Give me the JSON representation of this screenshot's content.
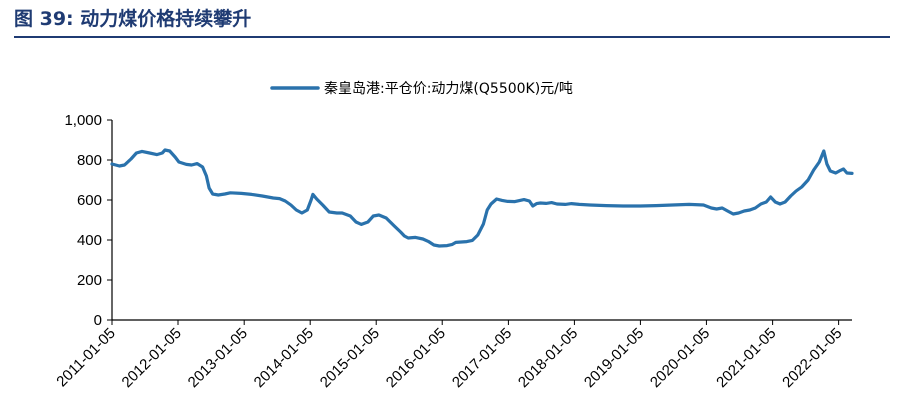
{
  "figure": {
    "title": "图 39: 动力煤价格持续攀升"
  },
  "colors": {
    "title": "#1f3b73",
    "series": "#2a72ac"
  },
  "chart_data": {
    "type": "line",
    "title": "",
    "xlabel": "",
    "ylabel": "",
    "legend": "top-center",
    "grid": false,
    "ylim": [
      0,
      1000
    ],
    "y_ticks": [
      "0",
      "200",
      "400",
      "600",
      "800",
      "1,000"
    ],
    "x_ticks": [
      "2011-01-05",
      "2012-01-05",
      "2013-01-05",
      "2014-01-05",
      "2015-01-05",
      "2016-01-05",
      "2017-01-05",
      "2018-01-05",
      "2019-01-05",
      "2020-01-05",
      "2021-01-05",
      "2022-01-05"
    ],
    "xlim": [
      "2011-01-05",
      "2022-03-20"
    ],
    "series": [
      {
        "name": "秦皇岛港:平仓价:动力煤(Q5500K)元/吨",
        "color": "#2a72ac",
        "points": [
          [
            "2011-01-05",
            780
          ],
          [
            "2011-02-15",
            770
          ],
          [
            "2011-03-15",
            775
          ],
          [
            "2011-04-20",
            805
          ],
          [
            "2011-05-20",
            835
          ],
          [
            "2011-06-20",
            843
          ],
          [
            "2011-08-01",
            835
          ],
          [
            "2011-09-10",
            827
          ],
          [
            "2011-10-10",
            835
          ],
          [
            "2011-10-25",
            850
          ],
          [
            "2011-11-20",
            845
          ],
          [
            "2011-12-20",
            815
          ],
          [
            "2012-01-10",
            790
          ],
          [
            "2012-02-20",
            778
          ],
          [
            "2012-03-20",
            775
          ],
          [
            "2012-04-20",
            782
          ],
          [
            "2012-05-20",
            765
          ],
          [
            "2012-06-10",
            720
          ],
          [
            "2012-06-25",
            660
          ],
          [
            "2012-07-15",
            630
          ],
          [
            "2012-08-15",
            625
          ],
          [
            "2012-09-20",
            630
          ],
          [
            "2012-10-20",
            636
          ],
          [
            "2012-12-20",
            633
          ],
          [
            "2013-02-15",
            628
          ],
          [
            "2013-04-15",
            620
          ],
          [
            "2013-06-15",
            610
          ],
          [
            "2013-07-20",
            607
          ],
          [
            "2013-08-20",
            595
          ],
          [
            "2013-09-20",
            575
          ],
          [
            "2013-10-20",
            550
          ],
          [
            "2013-11-20",
            535
          ],
          [
            "2013-12-20",
            550
          ],
          [
            "2014-01-10",
            600
          ],
          [
            "2014-01-20",
            628
          ],
          [
            "2014-02-10",
            605
          ],
          [
            "2014-03-15",
            575
          ],
          [
            "2014-04-20",
            540
          ],
          [
            "2014-06-01",
            535
          ],
          [
            "2014-07-01",
            535
          ],
          [
            "2014-08-15",
            520
          ],
          [
            "2014-09-15",
            490
          ],
          [
            "2014-10-15",
            478
          ],
          [
            "2014-11-20",
            490
          ],
          [
            "2014-12-20",
            520
          ],
          [
            "2015-01-20",
            525
          ],
          [
            "2015-03-01",
            510
          ],
          [
            "2015-04-15",
            470
          ],
          [
            "2015-05-20",
            440
          ],
          [
            "2015-06-10",
            420
          ],
          [
            "2015-07-01",
            410
          ],
          [
            "2015-08-10",
            413
          ],
          [
            "2015-09-20",
            405
          ],
          [
            "2015-10-20",
            393
          ],
          [
            "2015-11-20",
            375
          ],
          [
            "2015-12-20",
            370
          ],
          [
            "2016-02-01",
            372
          ],
          [
            "2016-03-01",
            378
          ],
          [
            "2016-03-20",
            388
          ],
          [
            "2016-04-20",
            390
          ],
          [
            "2016-05-20",
            392
          ],
          [
            "2016-06-20",
            398
          ],
          [
            "2016-07-20",
            425
          ],
          [
            "2016-08-20",
            480
          ],
          [
            "2016-09-10",
            550
          ],
          [
            "2016-10-01",
            580
          ],
          [
            "2016-11-01",
            605
          ],
          [
            "2016-12-01",
            598
          ],
          [
            "2017-01-01",
            593
          ],
          [
            "2017-02-10",
            592
          ],
          [
            "2017-03-01",
            596
          ],
          [
            "2017-04-01",
            602
          ],
          [
            "2017-05-01",
            595
          ],
          [
            "2017-05-20",
            570
          ],
          [
            "2017-06-10",
            582
          ],
          [
            "2017-07-01",
            585
          ],
          [
            "2017-08-01",
            583
          ],
          [
            "2017-09-01",
            587
          ],
          [
            "2017-10-01",
            580
          ],
          [
            "2017-11-15",
            578
          ],
          [
            "2017-12-20",
            582
          ],
          [
            "2018-02-01",
            578
          ],
          [
            "2018-04-01",
            575
          ],
          [
            "2018-07-01",
            572
          ],
          [
            "2018-10-01",
            570
          ],
          [
            "2019-01-05",
            570
          ],
          [
            "2019-04-01",
            572
          ],
          [
            "2019-07-01",
            575
          ],
          [
            "2019-10-01",
            578
          ],
          [
            "2019-12-20",
            575
          ],
          [
            "2020-02-01",
            560
          ],
          [
            "2020-03-01",
            555
          ],
          [
            "2020-04-01",
            560
          ],
          [
            "2020-05-01",
            545
          ],
          [
            "2020-06-01",
            530
          ],
          [
            "2020-07-01",
            535
          ],
          [
            "2020-08-01",
            545
          ],
          [
            "2020-09-01",
            550
          ],
          [
            "2020-10-01",
            560
          ],
          [
            "2020-11-01",
            580
          ],
          [
            "2020-12-01",
            590
          ],
          [
            "2020-12-25",
            615
          ],
          [
            "2021-01-20",
            590
          ],
          [
            "2021-02-15",
            580
          ],
          [
            "2021-03-15",
            590
          ],
          [
            "2021-04-15",
            620
          ],
          [
            "2021-05-15",
            645
          ],
          [
            "2021-06-15",
            665
          ],
          [
            "2021-07-20",
            700
          ],
          [
            "2021-08-20",
            750
          ],
          [
            "2021-09-20",
            790
          ],
          [
            "2021-10-15",
            845
          ],
          [
            "2021-11-01",
            780
          ],
          [
            "2021-11-20",
            745
          ],
          [
            "2021-12-20",
            735
          ],
          [
            "2022-01-15",
            748
          ],
          [
            "2022-02-01",
            755
          ],
          [
            "2022-02-20",
            735
          ],
          [
            "2022-03-20",
            733
          ]
        ]
      }
    ]
  }
}
